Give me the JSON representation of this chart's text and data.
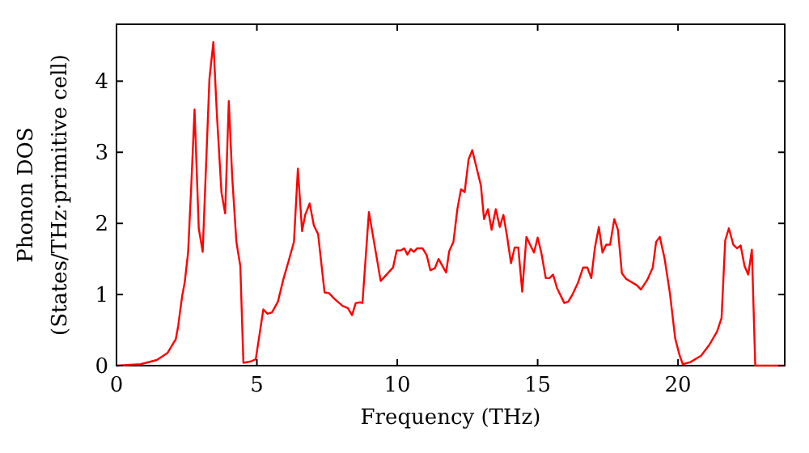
{
  "chart_data": {
    "type": "line",
    "xlabel": "Frequency (THz)",
    "ylabel": "Phonon DOS\n(States/THz·primitive cell)",
    "xlim": [
      0,
      23.8
    ],
    "ylim": [
      0,
      4.8
    ],
    "xticks": [
      0,
      5,
      10,
      15,
      20
    ],
    "yticks": [
      0,
      1,
      2,
      3,
      4
    ],
    "grid": false,
    "marker": "none",
    "line_style": "solid",
    "series": [
      {
        "color": "#ff0000",
        "x": [
          0,
          0.86,
          1.44,
          1.82,
          2.11,
          2.2,
          2.26,
          2.34,
          2.43,
          2.55,
          2.66,
          2.78,
          2.93,
          3.07,
          3.31,
          3.45,
          3.58,
          3.74,
          3.87,
          4.0,
          4.12,
          4.27,
          4.41,
          4.52,
          4.79,
          4.96,
          5.23,
          5.38,
          5.54,
          5.75,
          5.94,
          6.13,
          6.32,
          6.46,
          6.61,
          6.72,
          6.88,
          7.03,
          7.18,
          7.41,
          7.57,
          7.76,
          8.05,
          8.24,
          8.39,
          8.52,
          8.68,
          8.76,
          8.99,
          9.41,
          9.85,
          9.98,
          10.13,
          10.25,
          10.36,
          10.48,
          10.59,
          10.71,
          10.9,
          11.05,
          11.18,
          11.34,
          11.47,
          11.74,
          11.85,
          12.0,
          12.14,
          12.27,
          12.4,
          12.54,
          12.67,
          12.82,
          12.98,
          13.09,
          13.23,
          13.36,
          13.51,
          13.65,
          13.78,
          13.91,
          14.05,
          14.18,
          14.31,
          14.45,
          14.6,
          14.73,
          14.87,
          15.0,
          15.13,
          15.29,
          15.42,
          15.55,
          15.69,
          15.95,
          16.09,
          16.24,
          16.43,
          16.62,
          16.77,
          16.91,
          17.04,
          17.18,
          17.31,
          17.44,
          17.58,
          17.73,
          17.86,
          18.0,
          18.15,
          18.53,
          18.68,
          18.91,
          19.1,
          19.22,
          19.35,
          19.52,
          19.71,
          19.9,
          20.06,
          20.17,
          20.44,
          20.82,
          21.11,
          21.39,
          21.55,
          21.68,
          21.81,
          21.97,
          22.1,
          22.23,
          22.37,
          22.5,
          22.63,
          22.75,
          23.8
        ],
        "values": [
          0,
          0.02,
          0.08,
          0.18,
          0.37,
          0.56,
          0.75,
          0.98,
          1.17,
          1.59,
          2.5,
          3.6,
          1.93,
          1.6,
          4.03,
          4.55,
          3.5,
          2.43,
          2.14,
          3.72,
          2.66,
          1.74,
          1.4,
          0.04,
          0.06,
          0.09,
          0.79,
          0.73,
          0.75,
          0.9,
          1.21,
          1.47,
          1.74,
          2.77,
          1.89,
          2.12,
          2.28,
          1.97,
          1.85,
          1.03,
          1.02,
          0.94,
          0.84,
          0.81,
          0.71,
          0.88,
          0.89,
          0.88,
          2.16,
          1.19,
          1.38,
          1.62,
          1.62,
          1.65,
          1.56,
          1.64,
          1.6,
          1.65,
          1.65,
          1.55,
          1.34,
          1.37,
          1.5,
          1.31,
          1.61,
          1.74,
          2.2,
          2.48,
          2.44,
          2.9,
          3.03,
          2.79,
          2.53,
          2.06,
          2.2,
          1.91,
          2.2,
          1.95,
          2.12,
          1.82,
          1.44,
          1.66,
          1.66,
          1.04,
          1.81,
          1.7,
          1.59,
          1.8,
          1.59,
          1.23,
          1.23,
          1.28,
          1.09,
          0.88,
          0.9,
          1.0,
          1.16,
          1.38,
          1.38,
          1.23,
          1.66,
          1.95,
          1.59,
          1.7,
          1.7,
          2.06,
          1.91,
          1.3,
          1.22,
          1.13,
          1.07,
          1.21,
          1.38,
          1.74,
          1.81,
          1.51,
          1.02,
          0.38,
          0.14,
          0.02,
          0.05,
          0.14,
          0.29,
          0.48,
          0.67,
          1.76,
          1.93,
          1.7,
          1.65,
          1.69,
          1.4,
          1.28,
          1.63,
          0,
          0
        ]
      }
    ]
  }
}
